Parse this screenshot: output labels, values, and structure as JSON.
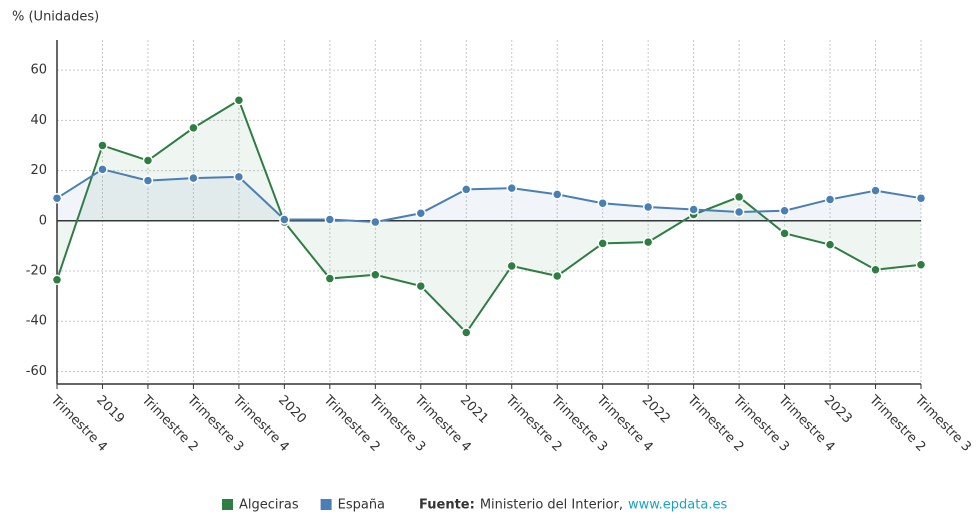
{
  "chart_data": {
    "type": "line",
    "y_label": "% (Unidades)",
    "categories": [
      "Trimestre 4",
      "2019",
      "Trimestre 2",
      "Trimestre 3",
      "Trimestre 4",
      "2020",
      "Trimestre 2",
      "Trimestre 3",
      "Trimestre 4",
      "2021",
      "Trimestre 2",
      "Trimestre 3",
      "Trimestre 4",
      "2022",
      "Trimestre 2",
      "Trimestre 3",
      "Trimestre 4",
      "2023",
      "Trimestre 2",
      "Trimestre 3"
    ],
    "series": [
      {
        "name": "Algeciras",
        "color": "#2e7d42",
        "values": [
          -23.5,
          30,
          24,
          37,
          48,
          -0.5,
          -23,
          -21.5,
          -26,
          -44.5,
          -18,
          -22,
          -9,
          -8.5,
          2.5,
          9.5,
          -5,
          -9.5,
          -19.5,
          -17.5
        ]
      },
      {
        "name": "España",
        "color": "#4a7fb5",
        "values": [
          9,
          20.5,
          16,
          17,
          17.5,
          0.5,
          0.5,
          -0.5,
          3,
          12.5,
          13,
          10.5,
          7,
          5.5,
          4.5,
          3.5,
          4,
          8.5,
          12,
          9
        ]
      }
    ],
    "ylim": [
      -65,
      72
    ],
    "yticks": [
      -60,
      -40,
      -20,
      0,
      20,
      40,
      60
    ],
    "grid": true,
    "source": {
      "label": "Fuente:",
      "text": "Ministerio del Interior,",
      "link": "www.epdata.es"
    }
  }
}
